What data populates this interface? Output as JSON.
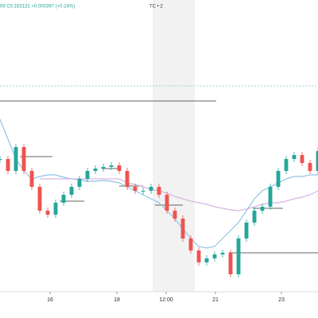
{
  "chart_data": {
    "type": "candlestick",
    "header": {
      "ohlc": "09  C0.163132  +0.000397 (+0.24%)",
      "symbol": "TC • 2"
    },
    "x": [
      0,
      1,
      2,
      3,
      4,
      5,
      6,
      7,
      8,
      9,
      10,
      11,
      12,
      13,
      14,
      15,
      16,
      17,
      18,
      19,
      20,
      21,
      22,
      23,
      24,
      25,
      26,
      27,
      28,
      29,
      30,
      31,
      32,
      33,
      34,
      35,
      36,
      37,
      38,
      39,
      40
    ],
    "series": [
      {
        "color": "#26a69a",
        "down_color": "#ef5350",
        "values": [
          200,
          185,
          215,
          185,
          165,
          135,
          130,
          145,
          155,
          165,
          175,
          185,
          188,
          190,
          192,
          185,
          165,
          160,
          160,
          165,
          155,
          135,
          125,
          100,
          85,
          70,
          75,
          80,
          82,
          55,
          100,
          120,
          135,
          140,
          165,
          185,
          200,
          205,
          195,
          185,
          210
        ]
      },
      {
        "color": "#90c4e4",
        "values": [
          250,
          225,
          200,
          185,
          175,
          178,
          180,
          180,
          177,
          175,
          174,
          172,
          172,
          173,
          172,
          170,
          165,
          160,
          155,
          150,
          145,
          135,
          125,
          112,
          100,
          90,
          88,
          90,
          100,
          110,
          120,
          135,
          150,
          160,
          165,
          170,
          175,
          178,
          178,
          180,
          180
        ]
      },
      {
        "color": "#d8b4e4",
        "values": [
          null,
          null,
          null,
          null,
          null,
          175,
          175,
          175,
          175,
          175,
          175,
          175,
          175,
          175,
          175,
          175,
          170,
          168,
          165,
          162,
          160,
          157,
          153,
          150,
          147,
          145,
          143,
          140,
          138,
          136,
          135,
          137,
          140,
          143,
          145,
          145,
          147,
          150,
          152,
          155,
          160
        ]
      }
    ],
    "xlim": [
      0,
      40
    ],
    "ylim": [
      35,
      400
    ],
    "xticks": [
      {
        "value": 6.3,
        "label": "16"
      },
      {
        "value": 14.7,
        "label": "18"
      },
      {
        "value": 20.9,
        "label": "12:00"
      },
      {
        "value": 27.1,
        "label": "21"
      },
      {
        "value": 35.4,
        "label": "23"
      }
    ]
  }
}
